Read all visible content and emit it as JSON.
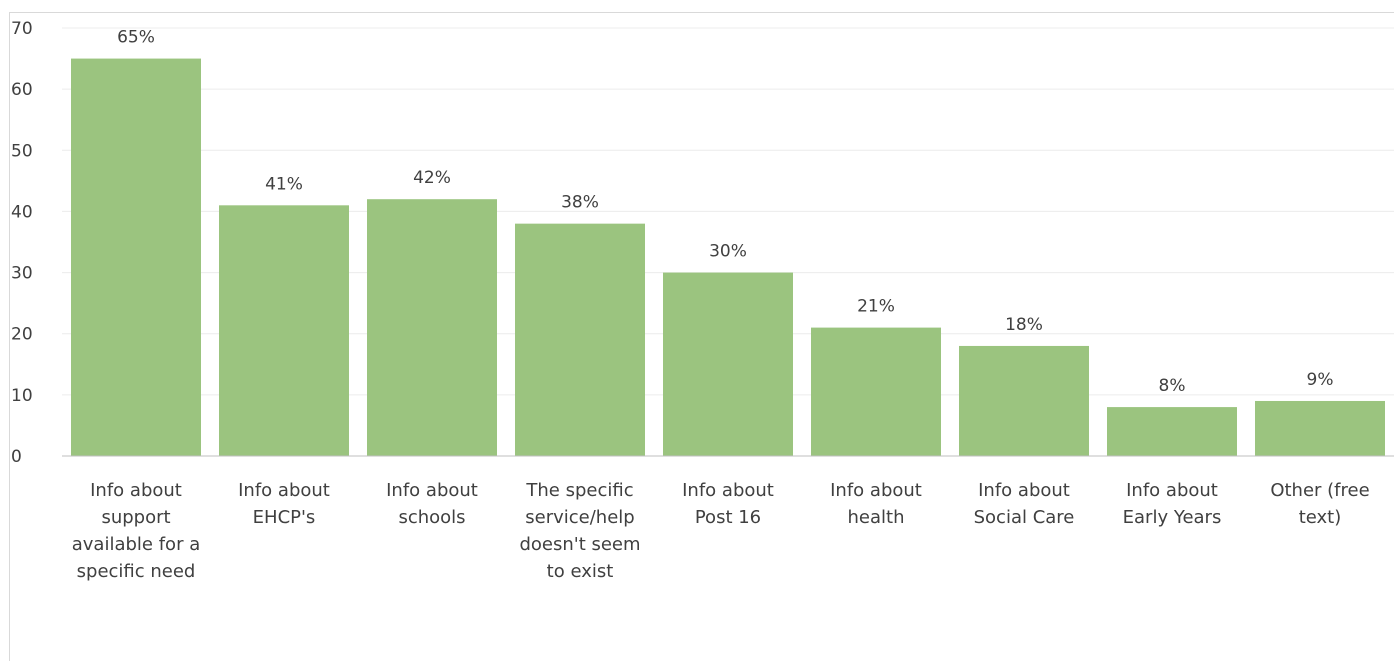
{
  "chart_data": {
    "type": "bar",
    "title": "",
    "xlabel": "",
    "ylabel": "",
    "ylim": [
      0,
      70
    ],
    "yticks": [
      0,
      10,
      20,
      30,
      40,
      50,
      60,
      70
    ],
    "grid": true,
    "bar_color": "#9bc47f",
    "categories": [
      [
        "Info about",
        "support",
        "available for a",
        "specific need"
      ],
      [
        "Info about",
        "EHCP's"
      ],
      [
        "Info about",
        "schools"
      ],
      [
        "The specific",
        "service/help",
        "doesn't seem",
        "to exist"
      ],
      [
        "Info about",
        "Post 16"
      ],
      [
        "Info about",
        "health"
      ],
      [
        "Info about",
        "Social Care"
      ],
      [
        "Info about",
        "Early Years"
      ],
      [
        "Other (free",
        "text)"
      ]
    ],
    "values": [
      65,
      41,
      42,
      38,
      30,
      21,
      18,
      8,
      9
    ],
    "data_labels": [
      "65%",
      "41%",
      "42%",
      "38%",
      "30%",
      "21%",
      "18%",
      "8%",
      "9%"
    ]
  }
}
